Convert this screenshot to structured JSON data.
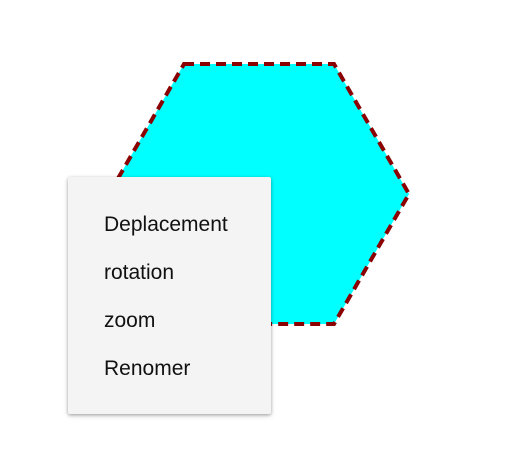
{
  "shape": {
    "fill": "#00ffff",
    "outline": "#8b0000"
  },
  "context_menu": {
    "items": [
      {
        "label": "Deplacement"
      },
      {
        "label": "rotation"
      },
      {
        "label": "zoom"
      },
      {
        "label": "Renomer"
      }
    ]
  }
}
